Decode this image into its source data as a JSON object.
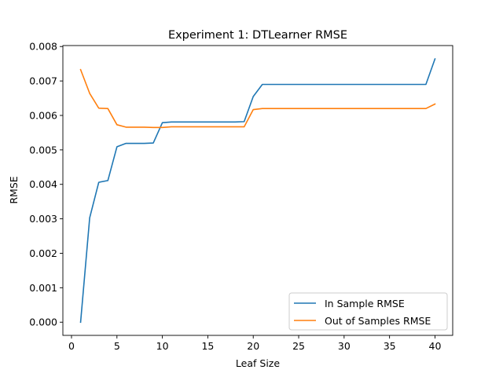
{
  "chart_data": {
    "type": "line",
    "title": "Experiment 1: DTLearner RMSE",
    "xlabel": "Leaf Size",
    "ylabel": "RMSE",
    "xlim": [
      -0.95,
      41.95
    ],
    "ylim": [
      -0.0003823,
      0.008028
    ],
    "xticks": [
      0,
      5,
      10,
      15,
      20,
      25,
      30,
      35,
      40
    ],
    "yticks": [
      0.0,
      0.001,
      0.002,
      0.003,
      0.004,
      0.005,
      0.006,
      0.007,
      0.008
    ],
    "xtick_labels": [
      "0",
      "5",
      "10",
      "15",
      "20",
      "25",
      "30",
      "35",
      "40"
    ],
    "ytick_labels": [
      "0.000",
      "0.001",
      "0.002",
      "0.003",
      "0.004",
      "0.005",
      "0.006",
      "0.007",
      "0.008"
    ],
    "grid": false,
    "legend_position": "lower-right",
    "x": [
      1,
      2,
      3,
      4,
      5,
      6,
      7,
      8,
      9,
      10,
      11,
      12,
      13,
      14,
      15,
      16,
      17,
      18,
      19,
      20,
      21,
      22,
      23,
      24,
      25,
      26,
      27,
      28,
      29,
      30,
      31,
      32,
      33,
      34,
      35,
      36,
      37,
      38,
      39,
      40
    ],
    "series": [
      {
        "name": "In Sample RMSE",
        "color": "#1f77b4",
        "values": [
          0.0,
          0.00303,
          0.00406,
          0.00411,
          0.00509,
          0.00519,
          0.00519,
          0.00519,
          0.0052,
          0.00579,
          0.00581,
          0.00581,
          0.00581,
          0.00581,
          0.00581,
          0.00581,
          0.00581,
          0.00581,
          0.00582,
          0.00655,
          0.0069,
          0.0069,
          0.0069,
          0.0069,
          0.0069,
          0.0069,
          0.0069,
          0.0069,
          0.0069,
          0.0069,
          0.0069,
          0.0069,
          0.0069,
          0.0069,
          0.0069,
          0.0069,
          0.0069,
          0.0069,
          0.0069,
          0.00764
        ]
      },
      {
        "name": "Out of Samples RMSE",
        "color": "#ff7f0e",
        "values": [
          0.00733,
          0.00664,
          0.00621,
          0.0062,
          0.00573,
          0.00566,
          0.00566,
          0.00566,
          0.00565,
          0.00565,
          0.00567,
          0.00567,
          0.00567,
          0.00567,
          0.00567,
          0.00567,
          0.00567,
          0.00567,
          0.00567,
          0.00617,
          0.0062,
          0.0062,
          0.0062,
          0.0062,
          0.0062,
          0.0062,
          0.0062,
          0.0062,
          0.0062,
          0.0062,
          0.0062,
          0.0062,
          0.0062,
          0.0062,
          0.0062,
          0.0062,
          0.0062,
          0.0062,
          0.0062,
          0.00633
        ]
      }
    ]
  }
}
